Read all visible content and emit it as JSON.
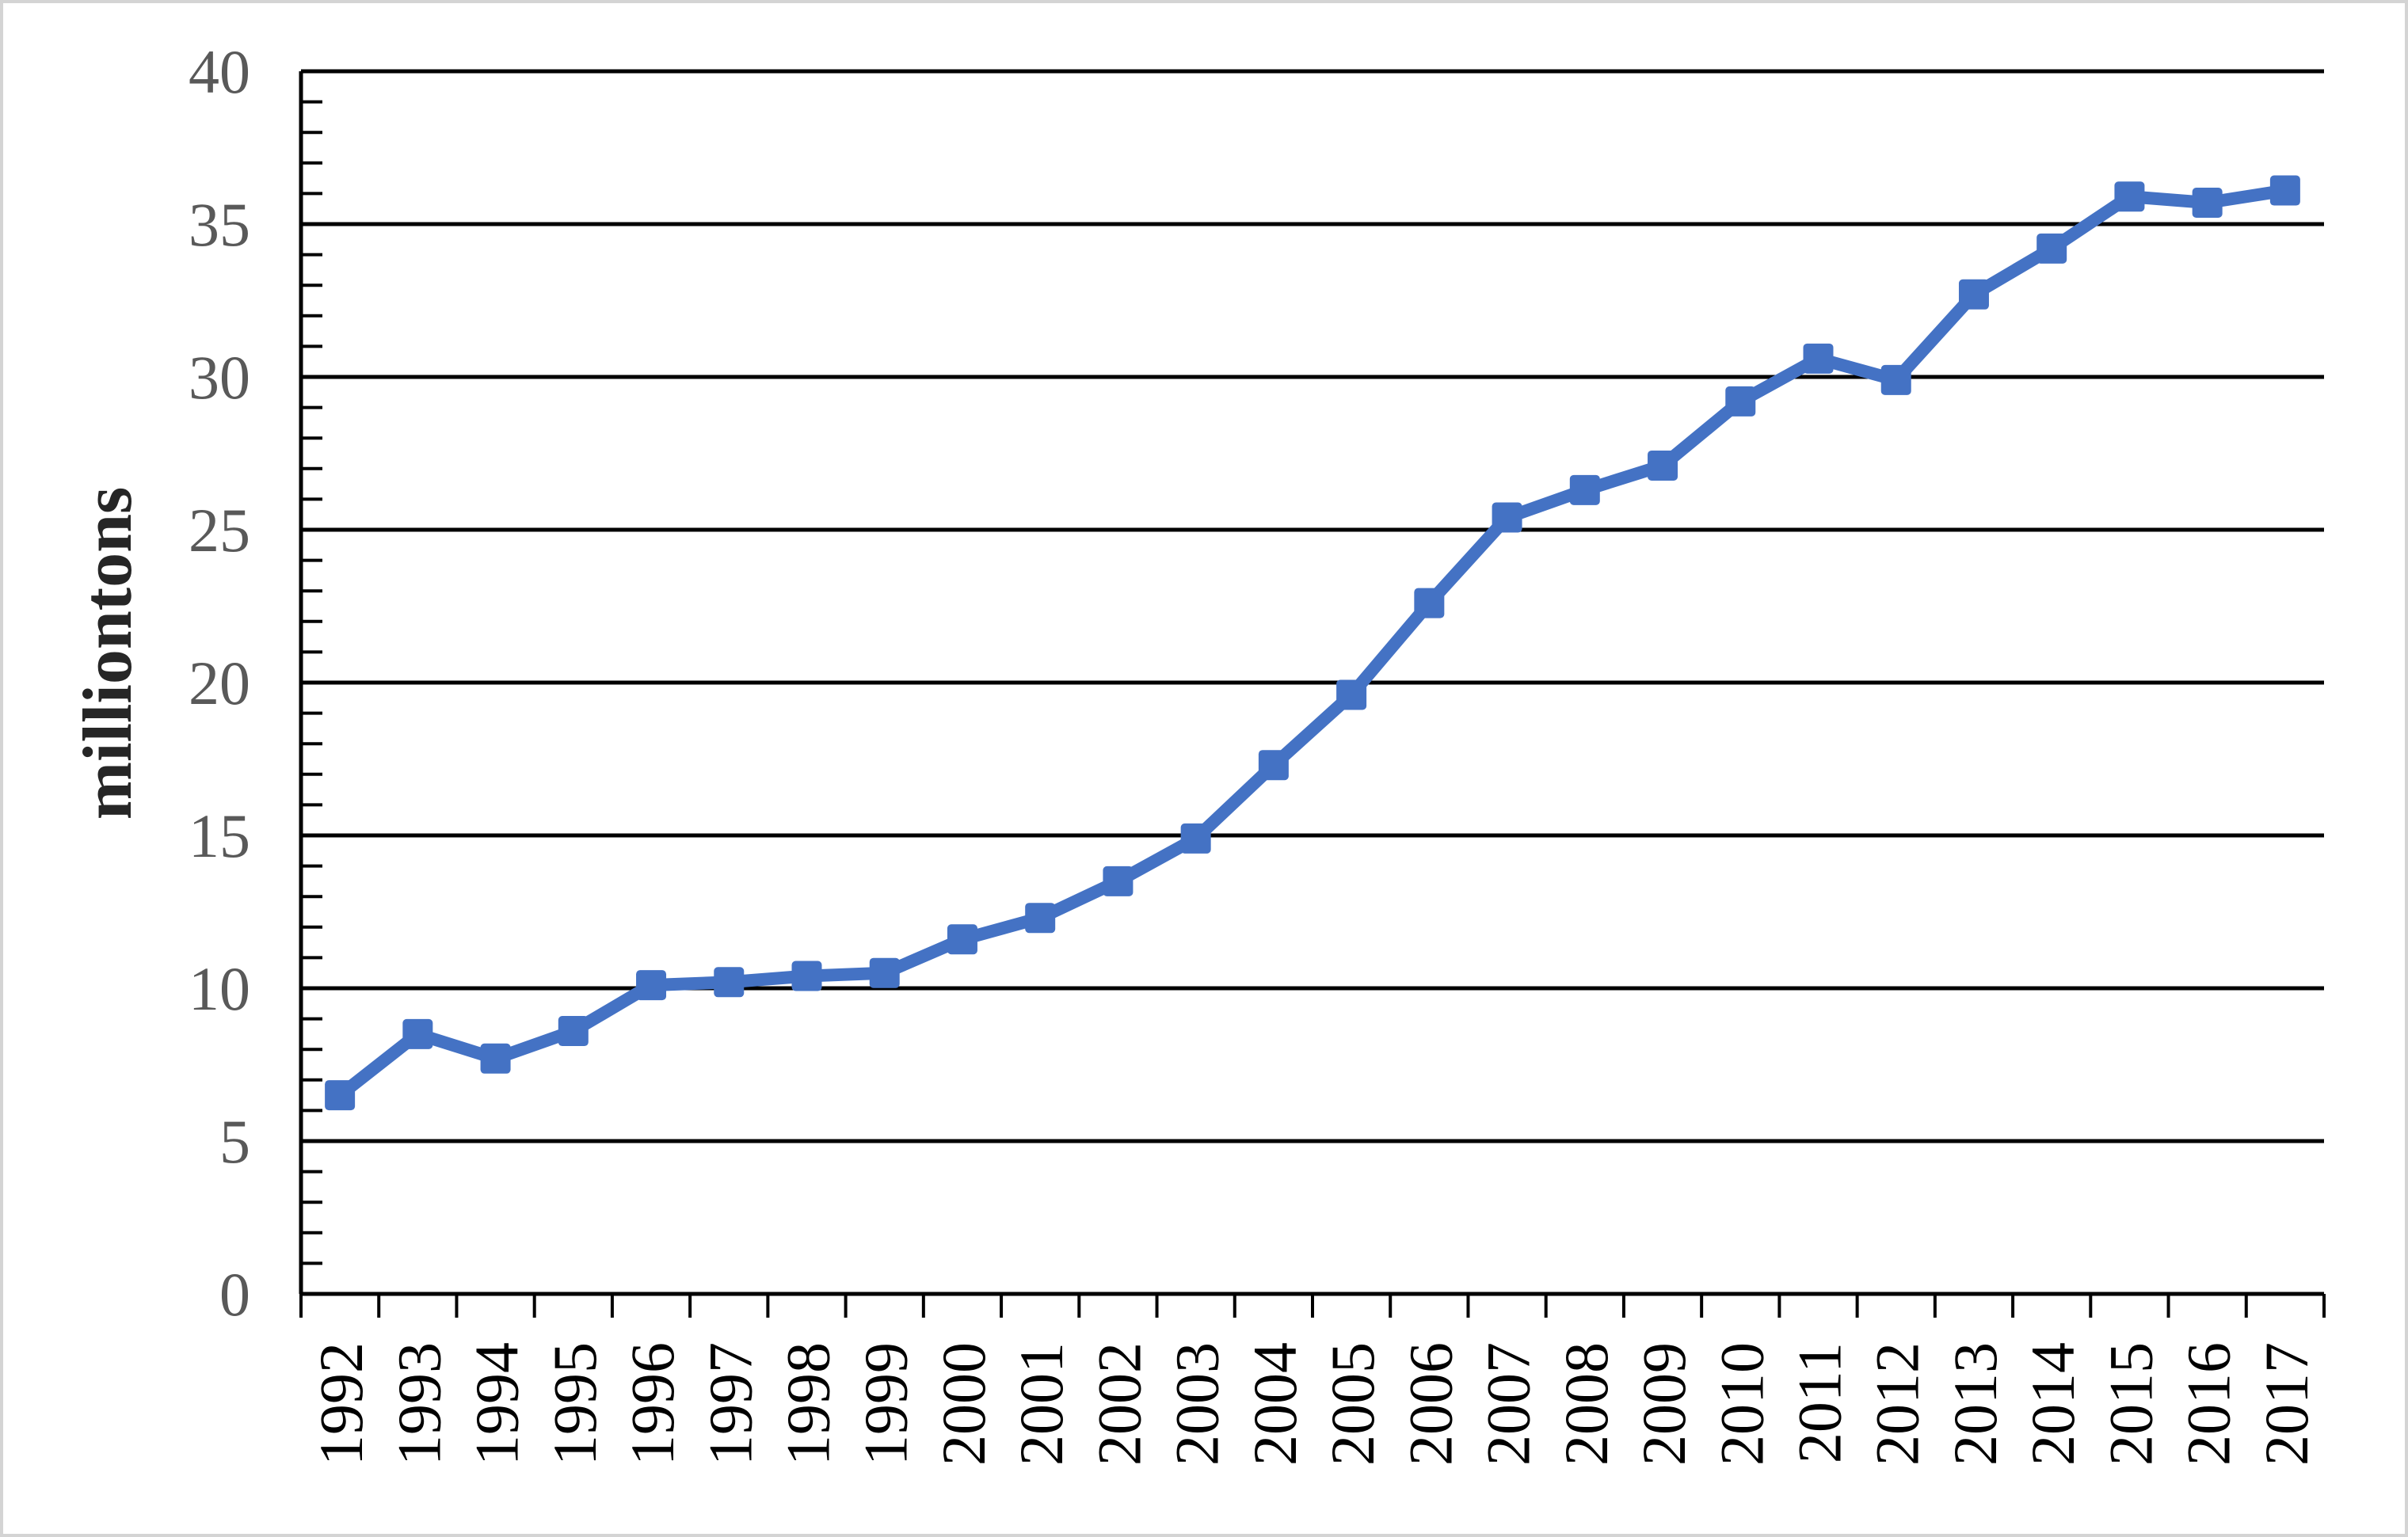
{
  "figure": {
    "background_color": "#ffffff",
    "frame_border_color": "#d4d4d4"
  },
  "chart_data": {
    "type": "line",
    "title": "",
    "xlabel": "",
    "ylabel": "milliontons",
    "categories": [
      "1992",
      "1993",
      "1994",
      "1995",
      "1996",
      "1997",
      "1998",
      "1999",
      "2000",
      "2001",
      "2002",
      "2003",
      "2004",
      "2005",
      "2006",
      "2007",
      "2008",
      "2009",
      "2010",
      "2011",
      "2012",
      "2013",
      "2014",
      "2015",
      "2016",
      "2017"
    ],
    "series": [
      {
        "name": "milliontons",
        "values": [
          6.5,
          8.5,
          7.7,
          8.6,
          10.1,
          10.2,
          10.4,
          10.5,
          11.6,
          12.3,
          13.5,
          14.9,
          17.3,
          19.6,
          22.6,
          25.4,
          26.3,
          27.1,
          29.2,
          30.6,
          29.9,
          32.7,
          34.2,
          35.9,
          35.7,
          36.1
        ],
        "color": "#4472C4",
        "marker": "square"
      }
    ],
    "ylim": [
      0,
      40
    ],
    "y_major_step": 5,
    "y_minor_step": 1,
    "y_tick_labels": [
      "0",
      "5",
      "10",
      "15",
      "20",
      "25",
      "30",
      "35",
      "40"
    ],
    "grid": "horizontal-major",
    "legend_position": "none",
    "axis_color": "#000000",
    "gridline_color": "#000000",
    "y_tick_label_color": "#595959",
    "x_tick_label_color": "#000000",
    "ylabel_color": "#262626",
    "x_tick_rotation_deg": -90
  }
}
